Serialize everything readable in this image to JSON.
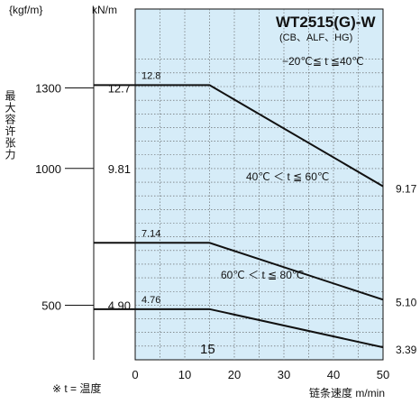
{
  "chart_data": {
    "type": "line",
    "title": "WT2515(G)-W",
    "subtitle": "(CB、ALF、HG)",
    "xlabel": "链条速度 m/min",
    "ylabel": "最大容许张力",
    "y_unit_left": "{kgf/m}",
    "y_unit_right": "kN/m",
    "xlim": [
      0,
      50
    ],
    "x_ticks": [
      "0",
      "10",
      "20",
      "30",
      "40",
      "50"
    ],
    "kgf_ticks": [
      "1300",
      "1000",
      "500"
    ],
    "kn_ticks": [
      "12.7",
      "9.81",
      "4.90"
    ],
    "break_marker": "15",
    "grid": true,
    "footnote": "※ t = 温度",
    "series": [
      {
        "name": "−20℃≦ t ≦40℃",
        "x": [
          0,
          15,
          50
        ],
        "y": [
          12.8,
          12.8,
          9.17
        ],
        "start_label": "12.8",
        "end_label": "9.17"
      },
      {
        "name": "40℃ ＜ t ≦ 60℃",
        "x": [
          0,
          15,
          50
        ],
        "y": [
          7.14,
          7.14,
          5.1
        ],
        "start_label": "7.14",
        "end_label": "5.10"
      },
      {
        "name": "60℃ ＜ t ≦ 80℃",
        "x": [
          0,
          15,
          50
        ],
        "y": [
          4.76,
          4.76,
          3.39
        ],
        "start_label": "4.76",
        "end_label": "3.39"
      }
    ]
  }
}
